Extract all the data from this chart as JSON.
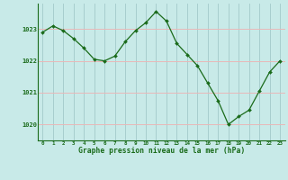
{
  "x": [
    0,
    1,
    2,
    3,
    4,
    5,
    6,
    7,
    8,
    9,
    10,
    11,
    12,
    13,
    14,
    15,
    16,
    17,
    18,
    19,
    20,
    21,
    22,
    23
  ],
  "y": [
    1022.9,
    1023.1,
    1022.95,
    1022.7,
    1022.4,
    1022.05,
    1022.0,
    1022.15,
    1022.6,
    1022.95,
    1023.2,
    1023.55,
    1023.25,
    1022.55,
    1022.2,
    1021.85,
    1021.3,
    1020.75,
    1020.0,
    1020.25,
    1020.45,
    1021.05,
    1021.65,
    1022.0
  ],
  "line_color": "#1a6b1a",
  "marker_color": "#1a6b1a",
  "bg_color": "#c8eae8",
  "vgrid_color": "#a8cece",
  "hgrid_color": "#e8b8b8",
  "xlabel": "Graphe pression niveau de la mer (hPa)",
  "xlabel_color": "#1a6b1a",
  "tick_color": "#1a6b1a",
  "ylim": [
    1019.5,
    1023.8
  ],
  "yticks": [
    1020,
    1021,
    1022,
    1023
  ],
  "xticks": [
    0,
    1,
    2,
    3,
    4,
    5,
    6,
    7,
    8,
    9,
    10,
    11,
    12,
    13,
    14,
    15,
    16,
    17,
    18,
    19,
    20,
    21,
    22,
    23
  ]
}
